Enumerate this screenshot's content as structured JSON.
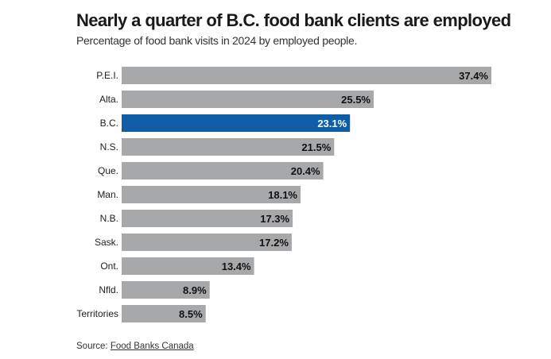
{
  "chart_data": {
    "type": "bar",
    "orientation": "horizontal",
    "title": "Nearly a quarter of B.C. food bank clients are employed",
    "subtitle": "Percentage of food bank visits in 2024 by employed people.",
    "categories": [
      "P.E.I.",
      "Alta.",
      "B.C.",
      "N.S.",
      "Que.",
      "Man.",
      "N.B.",
      "Sask.",
      "Ont.",
      "Nfld.",
      "Territories"
    ],
    "values": [
      37.4,
      25.5,
      23.1,
      21.5,
      20.4,
      18.1,
      17.3,
      17.2,
      13.4,
      8.9,
      8.5
    ],
    "value_labels": [
      "37.4%",
      "25.5%",
      "23.1%",
      "21.5%",
      "20.4%",
      "18.1%",
      "17.3%",
      "17.2%",
      "13.4%",
      "8.9%",
      "8.5%"
    ],
    "highlight": "B.C.",
    "xlim": [
      0,
      37.4
    ],
    "grid": false,
    "colors": {
      "bar": "#a7a8aa",
      "highlight": "#0e5da5",
      "label_on_bar": "#111111",
      "label_on_highlight": "#ffffff"
    }
  },
  "source": {
    "prefix": "Source: ",
    "link_text": "Food Banks Canada"
  }
}
